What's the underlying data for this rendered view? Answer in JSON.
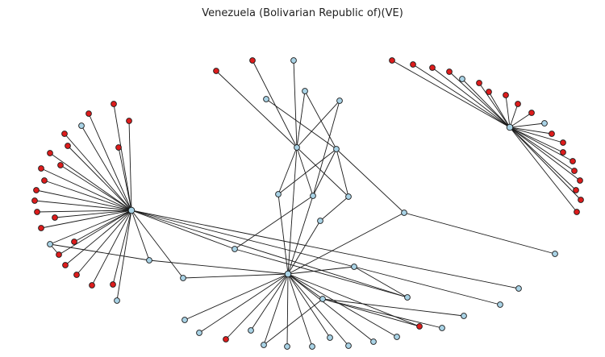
{
  "title": "Venezuela (Bolivarian Republic of)(VE)",
  "colors": {
    "edge": "#1a1a1a",
    "node_light": "#a9d3e6",
    "node_red": "#dd1c1c",
    "background": "#ffffff"
  }
}
